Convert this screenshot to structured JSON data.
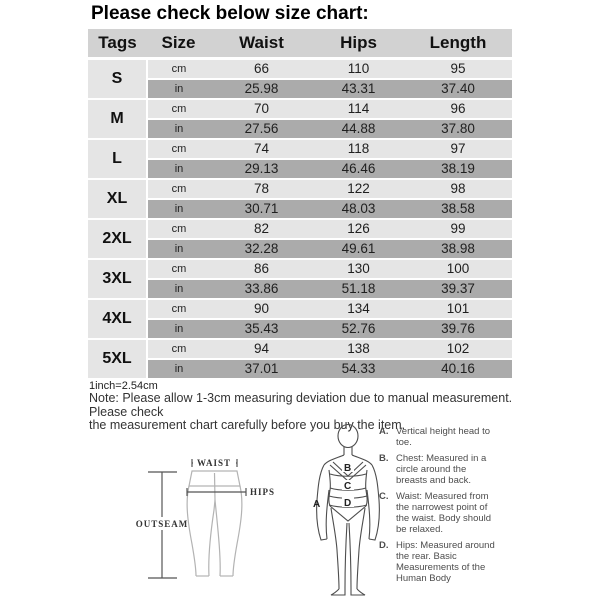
{
  "title": "Please check below size chart:",
  "table": {
    "headers": [
      "Tags",
      "Size",
      "Waist",
      "Hips",
      "Length"
    ],
    "unit_labels": [
      "cm",
      "in"
    ],
    "sizes": [
      {
        "tag": "S",
        "cm": {
          "waist": "66",
          "hips": "110",
          "length": "95"
        },
        "in": {
          "waist": "25.98",
          "hips": "43.31",
          "length": "37.40"
        }
      },
      {
        "tag": "M",
        "cm": {
          "waist": "70",
          "hips": "114",
          "length": "96"
        },
        "in": {
          "waist": "27.56",
          "hips": "44.88",
          "length": "37.80"
        }
      },
      {
        "tag": "L",
        "cm": {
          "waist": "74",
          "hips": "118",
          "length": "97"
        },
        "in": {
          "waist": "29.13",
          "hips": "46.46",
          "length": "38.19"
        }
      },
      {
        "tag": "XL",
        "cm": {
          "waist": "78",
          "hips": "122",
          "length": "98"
        },
        "in": {
          "waist": "30.71",
          "hips": "48.03",
          "length": "38.58"
        }
      },
      {
        "tag": "2XL",
        "cm": {
          "waist": "82",
          "hips": "126",
          "length": "99"
        },
        "in": {
          "waist": "32.28",
          "hips": "49.61",
          "length": "38.98"
        }
      },
      {
        "tag": "3XL",
        "cm": {
          "waist": "86",
          "hips": "130",
          "length": "100"
        },
        "in": {
          "waist": "33.86",
          "hips": "51.18",
          "length": "39.37"
        }
      },
      {
        "tag": "4XL",
        "cm": {
          "waist": "90",
          "hips": "134",
          "length": "101"
        },
        "in": {
          "waist": "35.43",
          "hips": "52.76",
          "length": "39.76"
        }
      },
      {
        "tag": "5XL",
        "cm": {
          "waist": "94",
          "hips": "138",
          "length": "102"
        },
        "in": {
          "waist": "37.01",
          "hips": "54.33",
          "length": "40.16"
        }
      }
    ]
  },
  "notes": {
    "conversion": "1inch=2.54cm",
    "note_line1": "Note: Please allow 1-3cm measuring deviation due to manual measurement. Please check",
    "note_line2": "the measurement chart carefully before you buy the item."
  },
  "diagram": {
    "leggings_labels": {
      "waist": "WAIST",
      "hips": "HIPS",
      "outseam": "OUTSEAM"
    },
    "figure_markers": {
      "a": "A",
      "b": "B",
      "c": "C",
      "d": "D"
    },
    "legend": [
      {
        "letter": "A.",
        "text": "Vertical height head to toe."
      },
      {
        "letter": "B.",
        "text": "Chest: Measured in a circle around the breasts and back."
      },
      {
        "letter": "C.",
        "text": "Waist: Measured from the narrowest point of the waist. Body should be relaxed."
      },
      {
        "letter": "D.",
        "text": "Hips: Measured around the rear. Basic Measurements of the Human Body"
      }
    ]
  },
  "colors": {
    "header_bg": "#d2d2d2",
    "row_light_bg": "#e5e5e5",
    "row_dark_bg": "#ababab",
    "sketch_outline": "#b3b3b3",
    "figure_outline": "#4d4d4d"
  }
}
